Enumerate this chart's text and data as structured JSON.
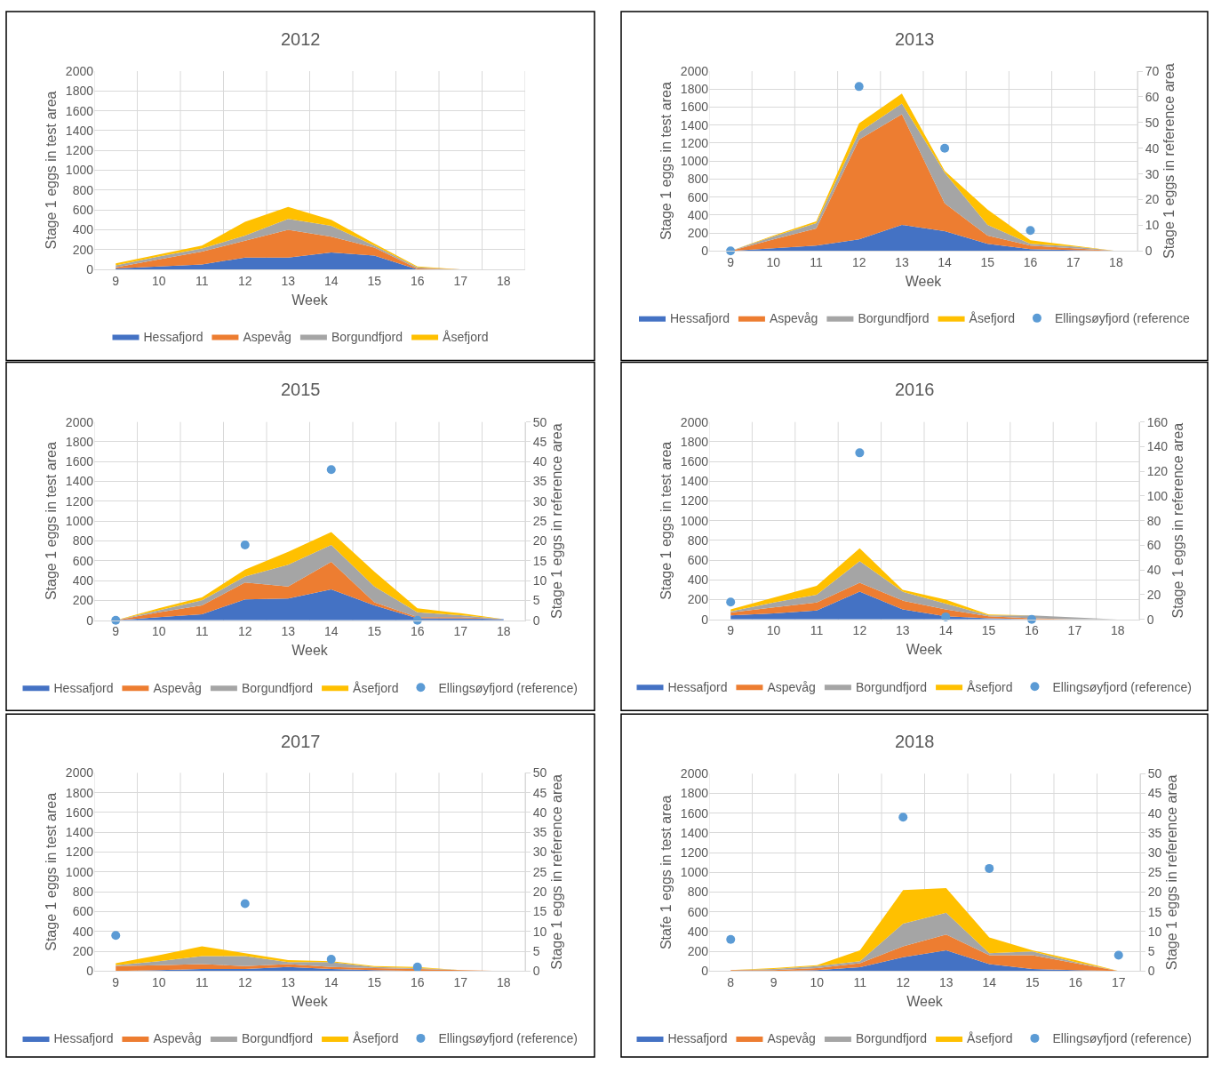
{
  "chart_data": [
    {
      "type": "area",
      "stacked": true,
      "title": "2012",
      "xlabel": "Week",
      "ylabel": "Stage 1 eggs in test area",
      "categories": [
        "9",
        "10",
        "11",
        "12",
        "13",
        "14",
        "15",
        "16",
        "17",
        "18"
      ],
      "ylim": [
        0,
        2000
      ],
      "yticks": [
        0,
        200,
        400,
        600,
        800,
        1000,
        1200,
        1400,
        1600,
        1800,
        2000
      ],
      "grid": true,
      "legend": "bottom",
      "series": [
        {
          "name": "Hessafjord",
          "color": "#4472c4",
          "values": [
            10,
            30,
            50,
            120,
            120,
            170,
            140,
            0,
            0,
            0
          ]
        },
        {
          "name": "Aspevåg",
          "color": "#ed7d31",
          "values": [
            10,
            70,
            130,
            170,
            280,
            160,
            80,
            10,
            0,
            0
          ]
        },
        {
          "name": "Borgundfjord",
          "color": "#a5a5a5",
          "values": [
            20,
            30,
            30,
            50,
            110,
            110,
            20,
            10,
            0,
            0
          ]
        },
        {
          "name": "Åsefjord",
          "color": "#ffc000",
          "values": [
            20,
            20,
            30,
            140,
            120,
            60,
            20,
            10,
            0,
            0
          ]
        }
      ]
    },
    {
      "type": "area",
      "stacked": true,
      "title": "2013",
      "xlabel": "Week",
      "ylabel": "Stage 1 eggs in test area",
      "y2label": "Stage 1 eggs in reference area",
      "categories": [
        "9",
        "10",
        "11",
        "12",
        "13",
        "14",
        "15",
        "16",
        "17",
        "18"
      ],
      "ylim": [
        0,
        2000
      ],
      "yticks": [
        0,
        200,
        400,
        600,
        800,
        1000,
        1200,
        1400,
        1600,
        1800,
        2000
      ],
      "y2lim": [
        0,
        70
      ],
      "y2ticks": [
        0,
        10,
        20,
        30,
        40,
        50,
        60,
        70
      ],
      "grid": true,
      "legend": "bottom",
      "series": [
        {
          "name": "Hessafjord",
          "color": "#4472c4",
          "values": [
            0,
            30,
            60,
            130,
            290,
            220,
            80,
            20,
            10,
            0
          ]
        },
        {
          "name": "Aspevåg",
          "color": "#ed7d31",
          "values": [
            0,
            100,
            190,
            1110,
            1230,
            310,
            90,
            40,
            20,
            0
          ]
        },
        {
          "name": "Borgundfjord",
          "color": "#a5a5a5",
          "values": [
            0,
            30,
            60,
            80,
            120,
            340,
            120,
            20,
            20,
            0
          ]
        },
        {
          "name": "Åsefjord",
          "color": "#ffc000",
          "values": [
            0,
            10,
            20,
            100,
            110,
            20,
            170,
            40,
            10,
            0
          ]
        },
        {
          "name": "Ellingsøyfjord (reference",
          "type": "scatter",
          "axis": "y2",
          "color": "#5b9bd5",
          "values": [
            0,
            null,
            null,
            64,
            null,
            40,
            null,
            8,
            null,
            null
          ]
        }
      ]
    },
    {
      "type": "area",
      "stacked": true,
      "title": "2015",
      "xlabel": "Week",
      "ylabel": "Stage 1 eggs in test area",
      "y2label": "Stage 1 eggs in reference area",
      "categories": [
        "9",
        "10",
        "11",
        "12",
        "13",
        "14",
        "15",
        "16",
        "17",
        "18"
      ],
      "ylim": [
        0,
        2000
      ],
      "yticks": [
        0,
        200,
        400,
        600,
        800,
        1000,
        1200,
        1400,
        1600,
        1800,
        2000
      ],
      "y2lim": [
        0,
        50
      ],
      "y2ticks": [
        0,
        5,
        10,
        15,
        20,
        25,
        30,
        35,
        40,
        45,
        50
      ],
      "grid": true,
      "legend": "bottom",
      "series": [
        {
          "name": "Hessafjord",
          "color": "#4472c4",
          "values": [
            0,
            30,
            60,
            210,
            220,
            310,
            150,
            20,
            20,
            10
          ]
        },
        {
          "name": "Aspevåg",
          "color": "#ed7d31",
          "values": [
            0,
            50,
            90,
            170,
            120,
            280,
            30,
            10,
            10,
            0
          ]
        },
        {
          "name": "Borgundfjord",
          "color": "#a5a5a5",
          "values": [
            0,
            20,
            50,
            60,
            220,
            170,
            160,
            50,
            20,
            0
          ]
        },
        {
          "name": "Åsefjord",
          "color": "#ffc000",
          "values": [
            0,
            20,
            30,
            70,
            130,
            130,
            150,
            40,
            20,
            0
          ]
        },
        {
          "name": "Ellingsøyfjord (reference)",
          "type": "scatter",
          "axis": "y2",
          "color": "#5b9bd5",
          "values": [
            0,
            null,
            null,
            19,
            null,
            38,
            null,
            0,
            null,
            null
          ]
        }
      ]
    },
    {
      "type": "area",
      "stacked": true,
      "title": "2016",
      "xlabel": "Week",
      "ylabel": "Stage 1 eggs in test area",
      "y2label": "Stage 1 eggs in reference area",
      "categories": [
        "9",
        "10",
        "11",
        "12",
        "13",
        "14",
        "15",
        "16",
        "17",
        "18"
      ],
      "ylim": [
        0,
        2000
      ],
      "yticks": [
        0,
        200,
        400,
        600,
        800,
        1000,
        1200,
        1400,
        1600,
        1800,
        2000
      ],
      "y2lim": [
        0,
        160
      ],
      "y2ticks": [
        0,
        20,
        40,
        60,
        80,
        100,
        120,
        140,
        160
      ],
      "grid": true,
      "legend": "bottom",
      "series": [
        {
          "name": "Hessafjord",
          "color": "#4472c4",
          "values": [
            40,
            60,
            90,
            280,
            100,
            30,
            10,
            0,
            0,
            0
          ]
        },
        {
          "name": "Aspevåg",
          "color": "#ed7d31",
          "values": [
            30,
            60,
            80,
            90,
            90,
            70,
            20,
            10,
            0,
            0
          ]
        },
        {
          "name": "Borgundfjord",
          "color": "#a5a5a5",
          "values": [
            10,
            50,
            80,
            220,
            90,
            60,
            10,
            30,
            20,
            0
          ]
        },
        {
          "name": "Åsefjord",
          "color": "#ffc000",
          "values": [
            20,
            50,
            90,
            130,
            20,
            40,
            10,
            0,
            0,
            0
          ]
        },
        {
          "name": "Ellingsøyfjord (reference)",
          "type": "scatter",
          "axis": "y2",
          "color": "#5b9bd5",
          "values": [
            14,
            null,
            null,
            135,
            null,
            2,
            null,
            0,
            null,
            null
          ]
        }
      ]
    },
    {
      "type": "area",
      "stacked": true,
      "title": "2017",
      "xlabel": "Week",
      "ylabel": "Stage 1 eggs in test area",
      "y2label": "Stage 1 eggs in reference area",
      "categories": [
        "9",
        "10",
        "11",
        "12",
        "13",
        "14",
        "15",
        "16",
        "17",
        "18"
      ],
      "ylim": [
        0,
        2000
      ],
      "yticks": [
        0,
        200,
        400,
        600,
        800,
        1000,
        1200,
        1400,
        1600,
        1800,
        2000
      ],
      "y2lim": [
        0,
        50
      ],
      "y2ticks": [
        0,
        5,
        10,
        15,
        20,
        25,
        30,
        35,
        40,
        45,
        50
      ],
      "grid": true,
      "legend": "bottom",
      "series": [
        {
          "name": "Hessafjord",
          "color": "#4472c4",
          "values": [
            0,
            10,
            20,
            20,
            40,
            20,
            10,
            0,
            0,
            0
          ]
        },
        {
          "name": "Aspevåg",
          "color": "#ed7d31",
          "values": [
            50,
            50,
            50,
            30,
            30,
            20,
            20,
            20,
            10,
            0
          ]
        },
        {
          "name": "Borgundfjord",
          "color": "#a5a5a5",
          "values": [
            10,
            40,
            80,
            100,
            20,
            50,
            10,
            10,
            0,
            0
          ]
        },
        {
          "name": "Åsefjord",
          "color": "#ffc000",
          "values": [
            20,
            60,
            100,
            30,
            20,
            10,
            10,
            10,
            0,
            0
          ]
        },
        {
          "name": "Ellingsøyfjord (reference)",
          "type": "scatter",
          "axis": "y2",
          "color": "#5b9bd5",
          "values": [
            9,
            null,
            null,
            17,
            null,
            3,
            null,
            1,
            null,
            null
          ]
        }
      ]
    },
    {
      "type": "area",
      "stacked": true,
      "title": "2018",
      "xlabel": "Week",
      "ylabel": "Stafe 1 eggs in test area",
      "y2label": "Stage 1 eggs in reference area",
      "categories": [
        "8",
        "9",
        "10",
        "11",
        "12",
        "13",
        "14",
        "15",
        "16",
        "17"
      ],
      "ylim": [
        0,
        2000
      ],
      "yticks": [
        0,
        200,
        400,
        600,
        800,
        1000,
        1200,
        1400,
        1600,
        1800,
        2000
      ],
      "y2lim": [
        0,
        50
      ],
      "y2ticks": [
        0,
        5,
        10,
        15,
        20,
        25,
        30,
        35,
        40,
        45,
        50
      ],
      "grid": true,
      "legend": "bottom",
      "series": [
        {
          "name": "Hessafjord",
          "color": "#4472c4",
          "values": [
            0,
            0,
            10,
            40,
            140,
            210,
            70,
            20,
            10,
            0
          ]
        },
        {
          "name": "Aspevåg",
          "color": "#ed7d31",
          "values": [
            10,
            10,
            20,
            40,
            110,
            160,
            90,
            140,
            70,
            0
          ]
        },
        {
          "name": "Borgundfjord",
          "color": "#a5a5a5",
          "values": [
            0,
            10,
            20,
            20,
            230,
            220,
            20,
            40,
            10,
            0
          ]
        },
        {
          "name": "Åsefjord",
          "color": "#ffc000",
          "values": [
            0,
            10,
            10,
            110,
            340,
            250,
            160,
            10,
            20,
            0
          ]
        },
        {
          "name": "Ellingsøyfjord (reference)",
          "type": "scatter",
          "axis": "y2",
          "color": "#5b9bd5",
          "values": [
            8,
            null,
            null,
            null,
            39,
            null,
            26,
            null,
            null,
            4
          ]
        }
      ]
    }
  ]
}
